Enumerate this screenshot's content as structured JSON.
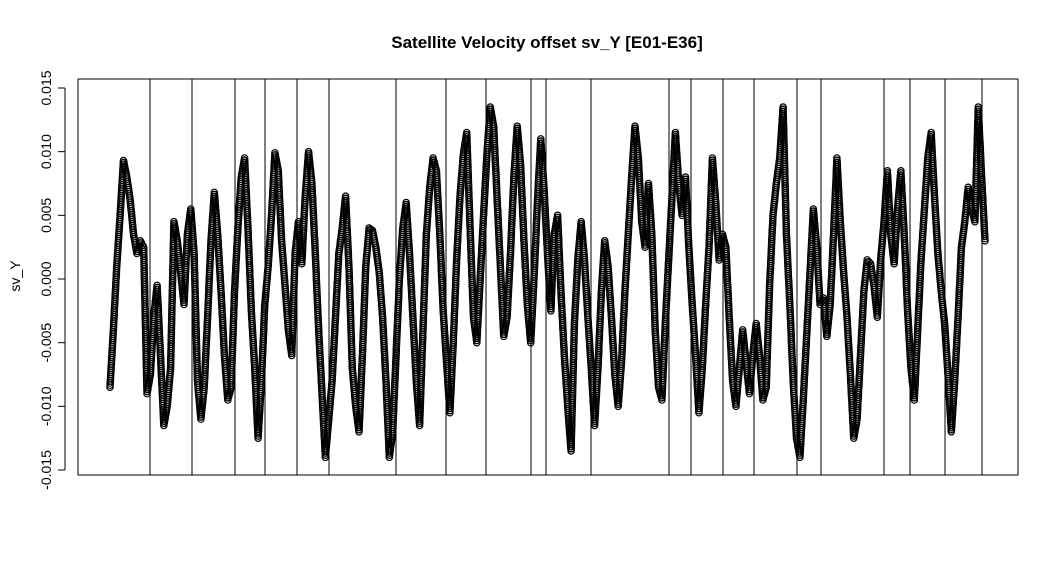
{
  "chart_data": {
    "type": "scatter",
    "title": "Satellite Velocity offset sv_Y [E01-E36]",
    "xlabel": "",
    "ylabel": "sv_Y",
    "ylim": [
      -0.015,
      0.015
    ],
    "yticks": [
      -0.015,
      -0.01,
      -0.005,
      0.0,
      0.005,
      0.01,
      0.015
    ],
    "ytick_labels": [
      "-0.015",
      "-0.010",
      "-0.005",
      "0.000",
      "0.005",
      "0.010",
      "0.015"
    ],
    "grid": false,
    "legend": "none",
    "marker": "open-circle",
    "segments_count": 23,
    "series": [
      {
        "values": [
          -0.0085,
          -0.004,
          0.001,
          0.005,
          0.0093,
          0.008,
          0.0062,
          0.0035,
          0.002,
          0.003,
          0.0025,
          -0.009,
          -0.0075,
          -0.003,
          -0.0005,
          -0.006,
          -0.0115,
          -0.01,
          -0.007,
          0.0045,
          0.003,
          0.0005,
          -0.002,
          0.0035,
          0.0055,
          0.002,
          -0.008,
          -0.011,
          -0.0085,
          -0.003,
          0.003,
          0.0068,
          0.0035,
          -0.001,
          -0.006,
          -0.0095,
          -0.0085,
          -0.001,
          0.004,
          0.008,
          0.0095,
          0.004,
          -0.0025,
          -0.007,
          -0.0125,
          -0.008,
          -0.002,
          0.001,
          0.005,
          0.0099,
          0.0085,
          0.003,
          -0.0005,
          -0.004,
          -0.006,
          0.002,
          0.0045,
          0.0012,
          0.0065,
          0.01,
          0.0075,
          0.002,
          -0.004,
          -0.009,
          -0.014,
          -0.011,
          -0.008,
          -0.003,
          0.002,
          0.004,
          0.0065,
          0.001,
          -0.007,
          -0.01,
          -0.012,
          -0.006,
          0.001,
          0.004,
          0.0038,
          0.0025,
          0.0005,
          -0.003,
          -0.008,
          -0.014,
          -0.012,
          -0.006,
          0.0,
          0.004,
          0.006,
          0.002,
          -0.003,
          -0.008,
          -0.0115,
          -0.004,
          0.0035,
          0.0072,
          0.0095,
          0.0085,
          0.0035,
          -0.0025,
          -0.0065,
          -0.0105,
          -0.005,
          0.0015,
          0.0065,
          0.0098,
          0.0115,
          0.004,
          -0.003,
          -0.005,
          0.0,
          0.005,
          0.0098,
          0.0135,
          0.012,
          0.0065,
          0.001,
          -0.0045,
          -0.003,
          0.002,
          0.008,
          0.012,
          0.009,
          0.003,
          -0.002,
          -0.005,
          0.0,
          0.006,
          0.011,
          0.007,
          0.002,
          -0.0025,
          0.0035,
          0.005,
          -0.001,
          -0.006,
          -0.01,
          -0.0135,
          -0.0035,
          0.0015,
          0.0045,
          0.0015,
          -0.003,
          -0.007,
          -0.0115,
          -0.007,
          -0.001,
          0.003,
          0.001,
          -0.003,
          -0.0075,
          -0.01,
          -0.0065,
          -0.001,
          0.0035,
          0.008,
          0.012,
          0.0095,
          0.0045,
          0.0025,
          0.0075,
          0.0035,
          -0.004,
          -0.0085,
          -0.0095,
          -0.0035,
          0.0015,
          0.0065,
          0.0115,
          0.0075,
          0.005,
          0.008,
          0.0025,
          -0.002,
          -0.006,
          -0.0105,
          -0.007,
          -0.002,
          0.0025,
          0.0095,
          0.006,
          0.0015,
          0.0035,
          0.0025,
          -0.003,
          -0.008,
          -0.01,
          -0.007,
          -0.004,
          -0.0065,
          -0.009,
          -0.006,
          -0.0035,
          -0.006,
          -0.0095,
          -0.0085,
          -0.0005,
          0.005,
          0.0075,
          0.0095,
          0.0135,
          0.0035,
          -0.002,
          -0.008,
          -0.0125,
          -0.014,
          -0.0095,
          -0.0045,
          0.0005,
          0.0055,
          0.0025,
          -0.002,
          -0.0015,
          -0.0045,
          -0.002,
          0.0035,
          0.0095,
          0.0045,
          0.0005,
          -0.003,
          -0.0075,
          -0.0125,
          -0.011,
          -0.006,
          -0.001,
          0.0015,
          0.0012,
          -0.0005,
          -0.003,
          0.0015,
          0.0045,
          0.0085,
          0.0035,
          0.0012,
          0.0055,
          0.0085,
          0.0035,
          -0.0025,
          -0.007,
          -0.0095,
          -0.004,
          0.0015,
          0.0055,
          0.0095,
          0.0115,
          0.0065,
          0.002,
          -0.001,
          -0.0035,
          -0.0075,
          -0.012,
          -0.008,
          -0.003,
          0.0025,
          0.0045,
          0.0072,
          0.0055,
          0.0045,
          0.0135,
          0.008,
          0.003
        ]
      }
    ]
  }
}
